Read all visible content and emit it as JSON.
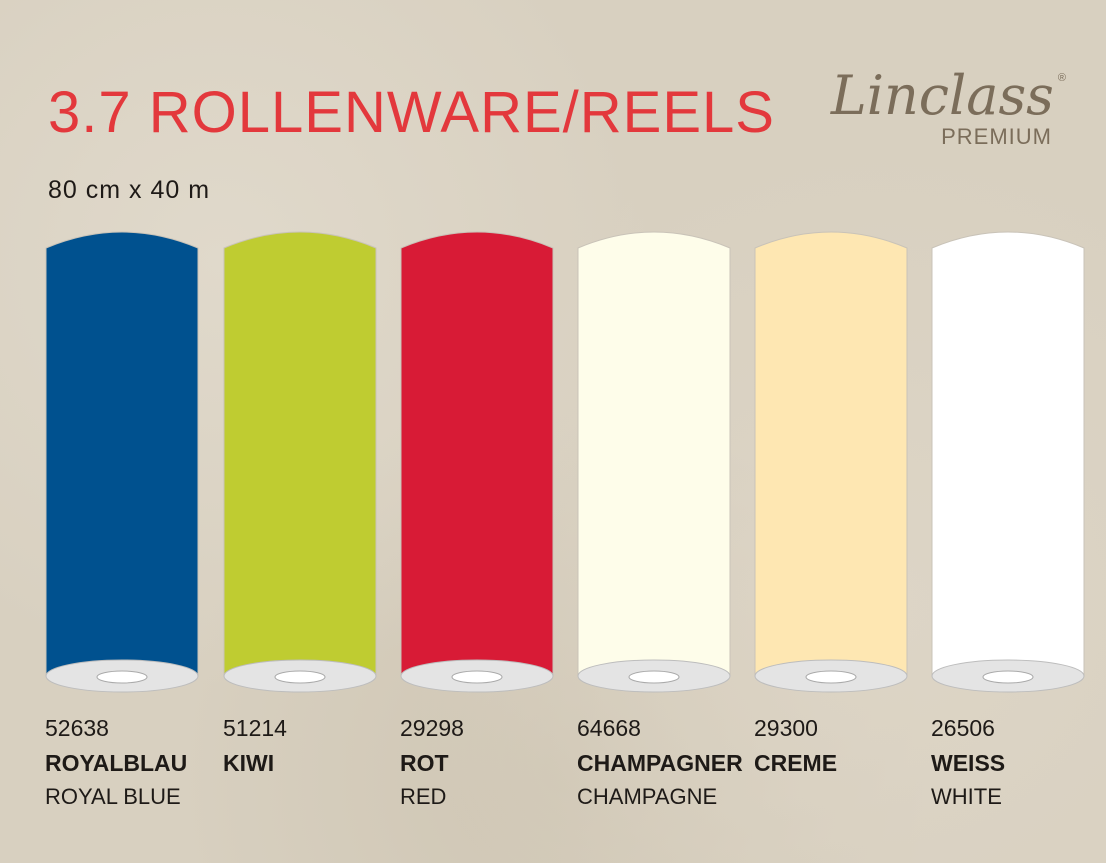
{
  "header": {
    "title": "3.7 ROLLENWARE/REELS",
    "size": "80 cm x 40 m"
  },
  "logo": {
    "brand": "Linclass",
    "sub": "PREMIUM",
    "reg": "®"
  },
  "products": [
    {
      "number": "52638",
      "name_de": "ROYALBLAU",
      "name_en": "ROYAL BLUE",
      "color": "#00518f"
    },
    {
      "number": "51214",
      "name_de": "KIWI",
      "name_en": "",
      "color": "#bfcc31"
    },
    {
      "number": "29298",
      "name_de": "ROT",
      "name_en": "RED",
      "color": "#d81b36"
    },
    {
      "number": "64668",
      "name_de": "CHAMPAGNER",
      "name_en": "CHAMPAGNE",
      "color": "#fefdea"
    },
    {
      "number": "29300",
      "name_de": "CREME",
      "name_en": "",
      "color": "#fee7b2"
    },
    {
      "number": "26506",
      "name_de": "WEISS",
      "name_en": "WHITE",
      "color": "#ffffff"
    }
  ]
}
